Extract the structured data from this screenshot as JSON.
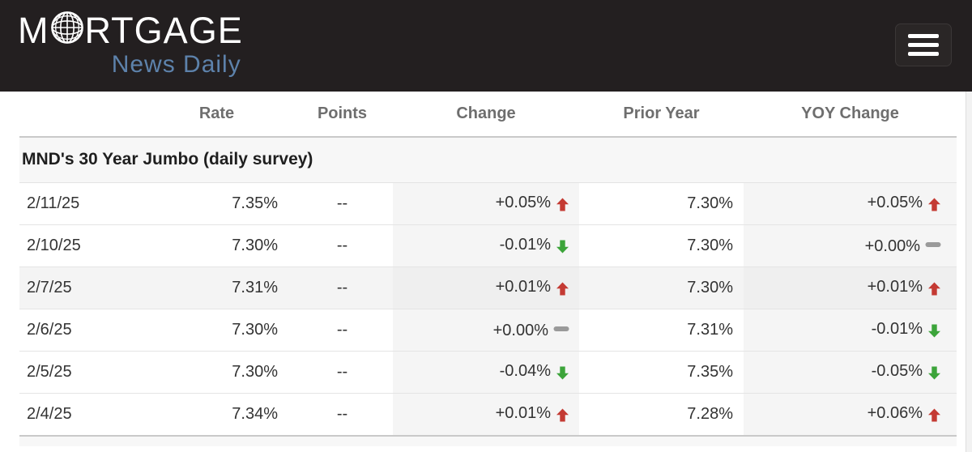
{
  "brand": {
    "full_name": "MORTGAGE",
    "name_prefix": "M",
    "name_suffix": "RTGAGE",
    "tagline": "News Daily"
  },
  "table": {
    "columns": [
      "",
      "Rate",
      "Points",
      "Change",
      "Prior Year",
      "YOY Change"
    ],
    "section_title": "MND's 30 Year Jumbo (daily survey)",
    "rows": [
      {
        "date": "2/11/25",
        "rate": "7.35%",
        "points": "--",
        "change": "+0.05%",
        "change_dir": "up",
        "prior_year": "7.30%",
        "yoy_change": "+0.05%",
        "yoy_dir": "up",
        "shaded": false
      },
      {
        "date": "2/10/25",
        "rate": "7.30%",
        "points": "--",
        "change": "-0.01%",
        "change_dir": "down",
        "prior_year": "7.30%",
        "yoy_change": "+0.00%",
        "yoy_dir": "flat",
        "shaded": false
      },
      {
        "date": "2/7/25",
        "rate": "7.31%",
        "points": "--",
        "change": "+0.01%",
        "change_dir": "up",
        "prior_year": "7.30%",
        "yoy_change": "+0.01%",
        "yoy_dir": "up",
        "shaded": true
      },
      {
        "date": "2/6/25",
        "rate": "7.30%",
        "points": "--",
        "change": "+0.00%",
        "change_dir": "flat",
        "prior_year": "7.31%",
        "yoy_change": "-0.01%",
        "yoy_dir": "down",
        "shaded": false
      },
      {
        "date": "2/5/25",
        "rate": "7.30%",
        "points": "--",
        "change": "-0.04%",
        "change_dir": "down",
        "prior_year": "7.35%",
        "yoy_change": "-0.05%",
        "yoy_dir": "down",
        "shaded": false
      },
      {
        "date": "2/4/25",
        "rate": "7.34%",
        "points": "--",
        "change": "+0.01%",
        "change_dir": "up",
        "prior_year": "7.28%",
        "yoy_change": "+0.06%",
        "yoy_dir": "up",
        "shaded": false
      }
    ]
  },
  "colors": {
    "topbar_bg": "#231f20",
    "brand_blue": "#5d82ab",
    "up_red": "#c43a33",
    "down_green": "#3ca43a",
    "flat_gray": "#9a9a9a",
    "column_shade": "#f5f5f5",
    "section_bg": "#f7f7f7"
  }
}
